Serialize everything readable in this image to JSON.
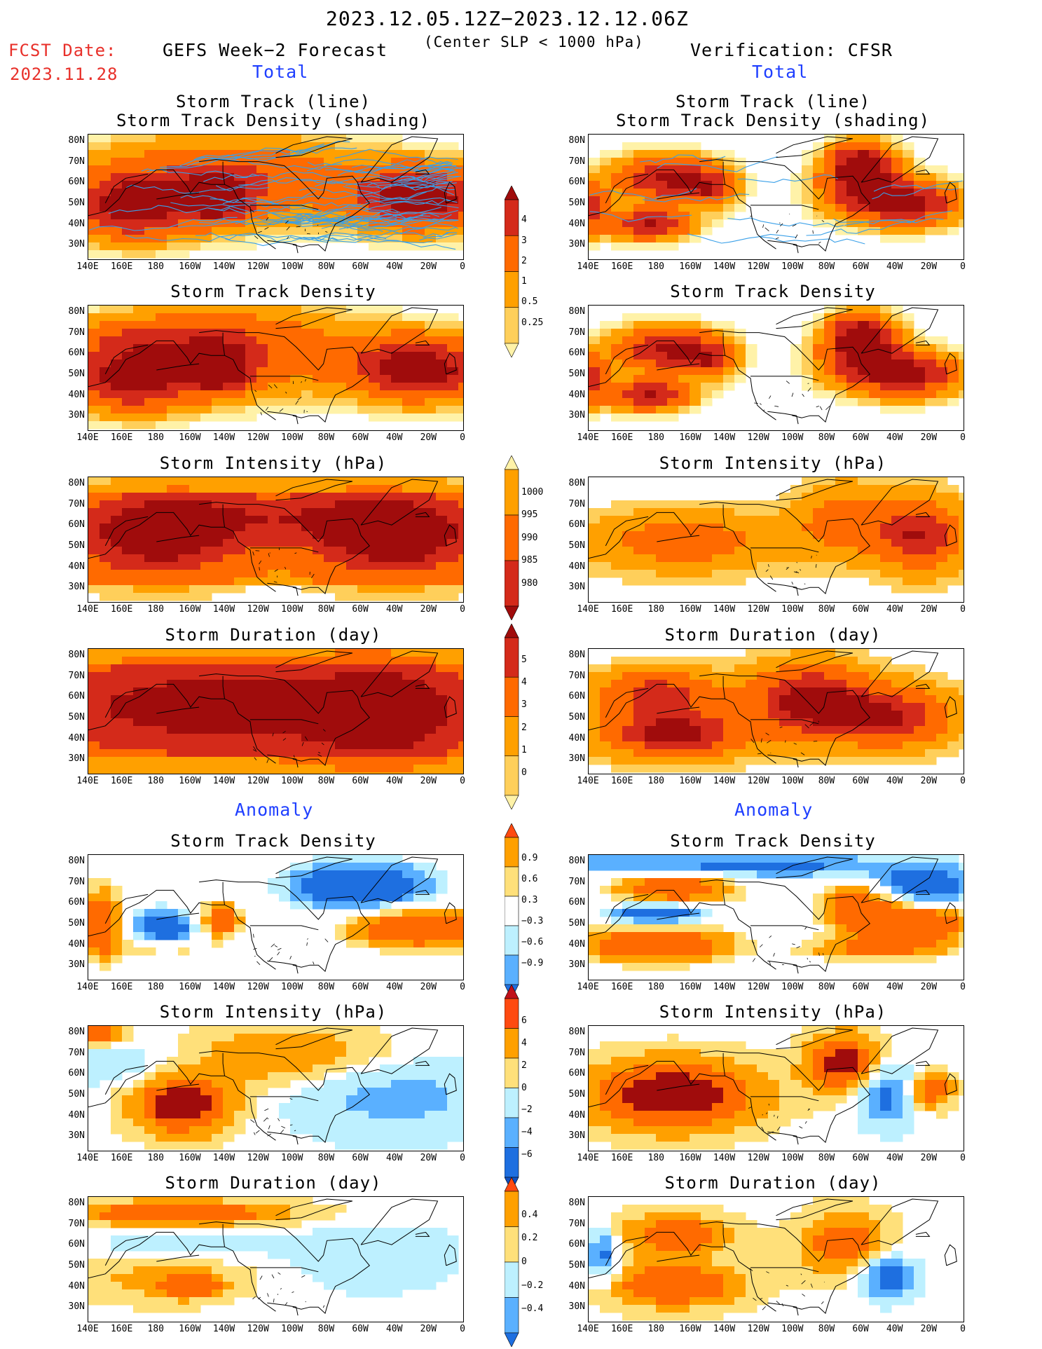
{
  "header": {
    "date_range": "2023.12.05.12Z−2023.12.12.06Z",
    "criteria": "(Center SLP < 1000 hPa)",
    "fcst_label": "FCST Date:",
    "fcst_date": "2023.11.28",
    "left_title": "GEFS Week−2 Forecast",
    "right_title": "Verification: CFSR"
  },
  "sections": {
    "total": "Total",
    "anomaly": "Anomaly"
  },
  "panel_titles": {
    "track_line": "Storm Track (line)",
    "track_shading": "Storm Track Density (shading)",
    "density": "Storm Track Density",
    "intensity": "Storm Intensity (hPa)",
    "duration": "Storm Duration (day)"
  },
  "axes": {
    "y_ticks": [
      "80N",
      "70N",
      "60N",
      "50N",
      "40N",
      "30N"
    ],
    "x_ticks": [
      "140E",
      "160E",
      "180",
      "160W",
      "140W",
      "120W",
      "100W",
      "80W",
      "60W",
      "40W",
      "20W",
      "0"
    ]
  },
  "colorbars": {
    "total_density": {
      "labels": [
        "4",
        "3",
        "2",
        "1",
        "0.5",
        "0.25"
      ],
      "colors": [
        "#a00c0c",
        "#d42a1a",
        "#ff6a00",
        "#ffa000",
        "#ffcf5a",
        "#fff2a8"
      ]
    },
    "total_intensity": {
      "labels": [
        "1000",
        "995",
        "990",
        "985",
        "980"
      ],
      "colors": [
        "#fff2a8",
        "#ffa000",
        "#ff6a00",
        "#d42a1a",
        "#a00c0c"
      ]
    },
    "total_duration": {
      "labels": [
        "5",
        "4",
        "3",
        "2",
        "1",
        "0"
      ],
      "colors": [
        "#a00c0c",
        "#d42a1a",
        "#ff6a00",
        "#ffa000",
        "#ffcf5a",
        "#fff2a8"
      ]
    },
    "anom_density": {
      "labels": [
        "0.9",
        "0.6",
        "0.3",
        "−0.3",
        "−0.6",
        "−0.9"
      ],
      "colors": [
        "#ff4a10",
        "#ffa000",
        "#ffe07a",
        "#ffffff",
        "#bdf0ff",
        "#5ab0ff",
        "#1e6fe0"
      ]
    },
    "anom_intensity": {
      "labels": [
        "6",
        "4",
        "2",
        "0",
        "−2",
        "−4",
        "−6"
      ],
      "colors": [
        "#c0101a",
        "#ff4a10",
        "#ffa000",
        "#ffe07a",
        "#bdf0ff",
        "#5ab0ff",
        "#1e6fe0",
        "#1050c0"
      ]
    },
    "anom_duration": {
      "labels": [
        "0.4",
        "0.2",
        "0",
        "−0.2",
        "−0.4"
      ],
      "colors": [
        "#ff4a10",
        "#ffa000",
        "#ffe07a",
        "#bdf0ff",
        "#5ab0ff",
        "#1e6fe0"
      ]
    }
  }
}
